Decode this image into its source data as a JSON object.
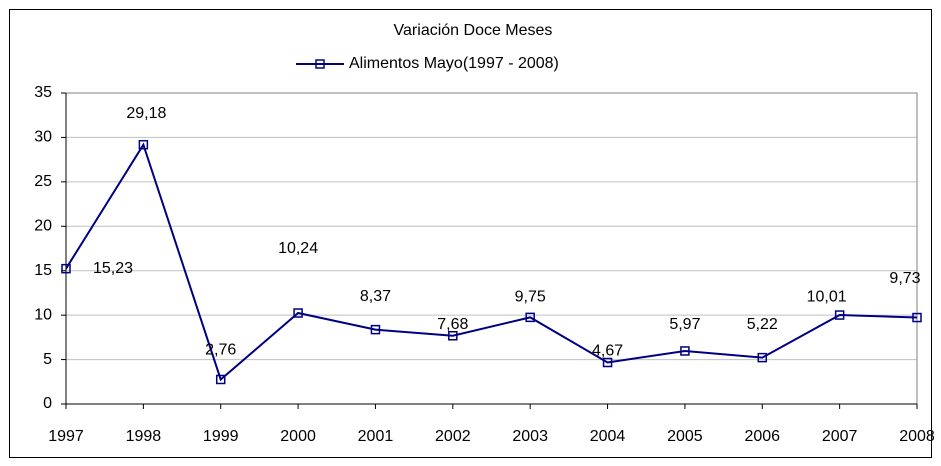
{
  "chart_data": {
    "type": "line",
    "title": "Variación Doce Meses",
    "categories": [
      "1997",
      "1998",
      "1999",
      "2000",
      "2001",
      "2002",
      "2003",
      "2004",
      "2005",
      "2006",
      "2007",
      "2008"
    ],
    "series": [
      {
        "name": "Alimentos Mayo(1997 - 2008)",
        "color": "#000080",
        "values": [
          15.23,
          29.18,
          2.76,
          10.24,
          8.37,
          7.68,
          9.75,
          4.67,
          5.97,
          5.22,
          10.01,
          9.73
        ],
        "value_labels": [
          "15,23",
          "29,18",
          "2,76",
          "10,24",
          "8,37",
          "7,68",
          "9,75",
          "4,67",
          "5,97",
          "5,22",
          "10,01",
          "9,73"
        ]
      }
    ],
    "ylim": [
      0,
      35
    ],
    "yticks": [
      0,
      5,
      10,
      15,
      20,
      25,
      30,
      35
    ],
    "grid": true,
    "legend": "top"
  }
}
